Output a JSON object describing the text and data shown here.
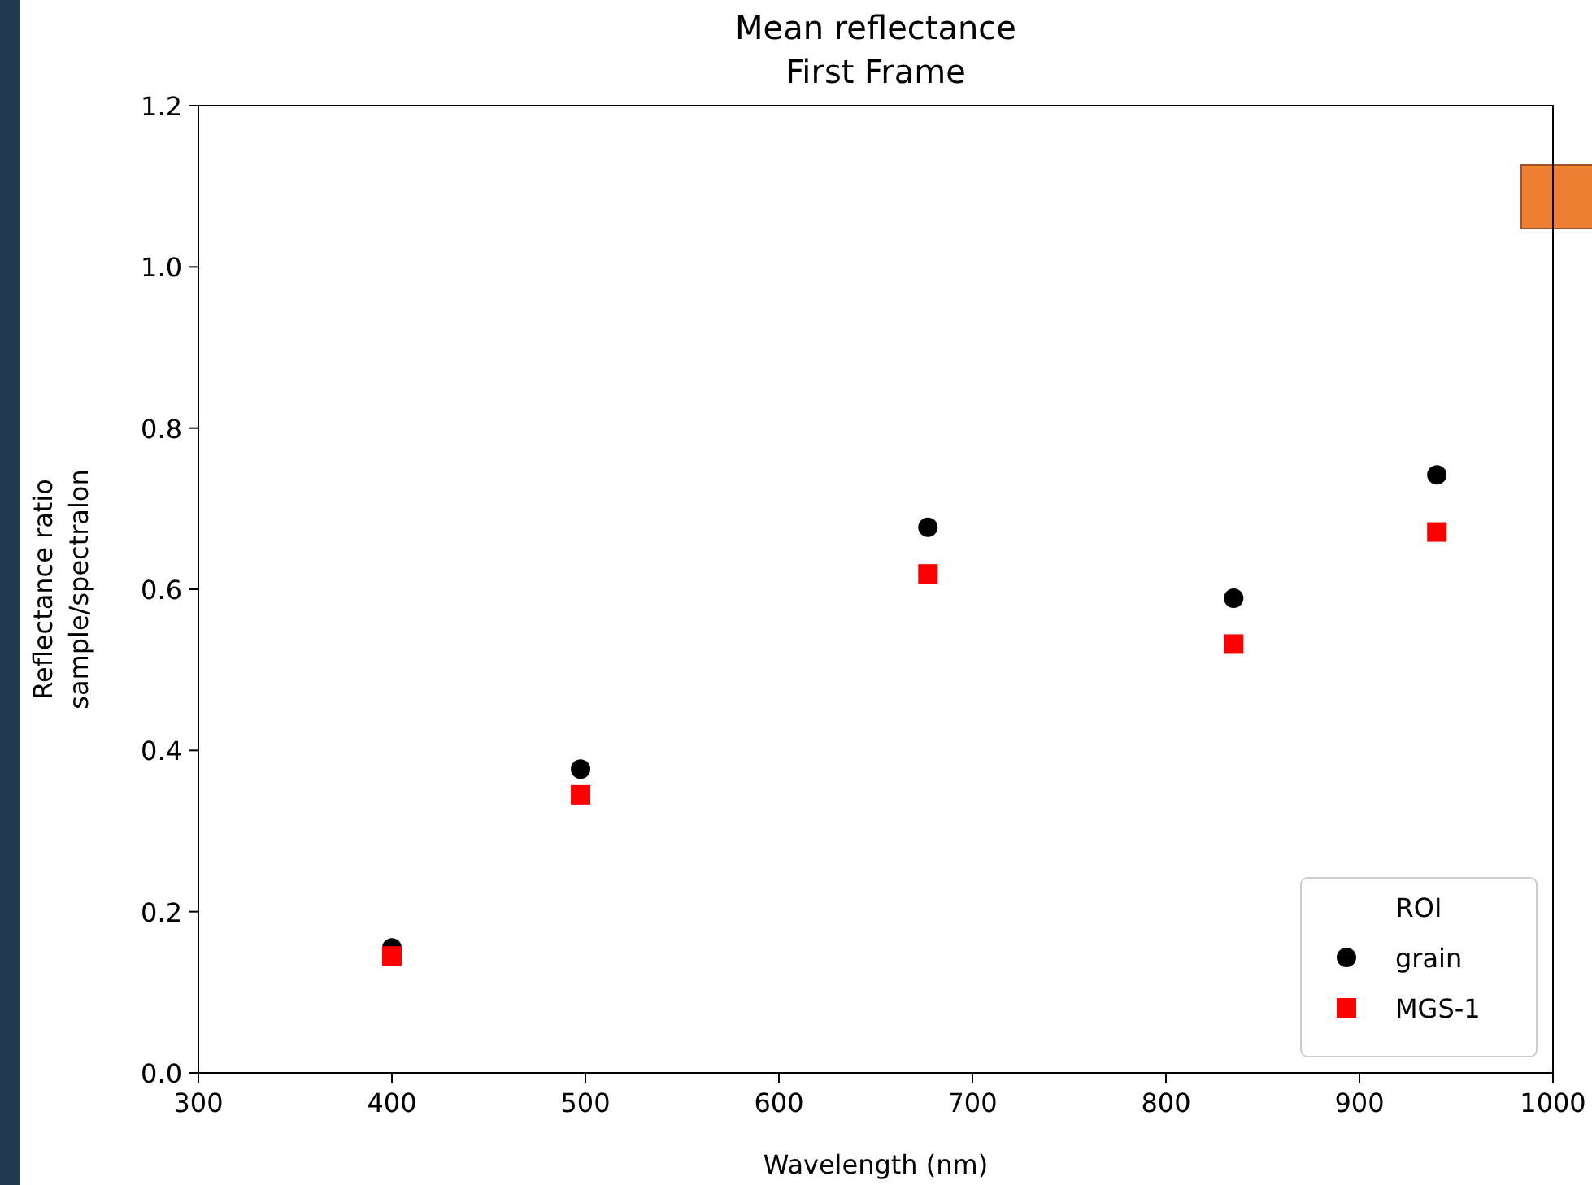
{
  "chart_data": {
    "type": "scatter",
    "title": "Mean reflectance\nFirst Frame",
    "xlabel": "Wavelength (nm)",
    "ylabel": "Reflectance ratio\nsample/spectralon",
    "legend_title": "ROI",
    "legend": "bottom right",
    "grid": false,
    "x": [
      400,
      497.5,
      677,
      835,
      940
    ],
    "xlim": [
      300,
      1000
    ],
    "xticks": [
      300,
      400,
      500,
      600,
      700,
      800,
      900,
      1000
    ],
    "ylim": [
      0,
      1.2
    ],
    "yticks": [
      {
        "value": 0,
        "label": "0.0"
      },
      0.2,
      0.4,
      0.6,
      0.8,
      {
        "value": 1,
        "label": "1.0"
      },
      1.2
    ],
    "series": [
      {
        "name": "grain",
        "color": "#000000",
        "marker": "circle",
        "values": [
          0.155,
          0.377,
          0.677,
          0.589,
          0.742
        ]
      },
      {
        "name": "MGS-1",
        "color": "#ff0000",
        "marker": "square",
        "values": [
          0.145,
          0.345,
          0.619,
          0.532,
          0.671
        ]
      }
    ]
  }
}
